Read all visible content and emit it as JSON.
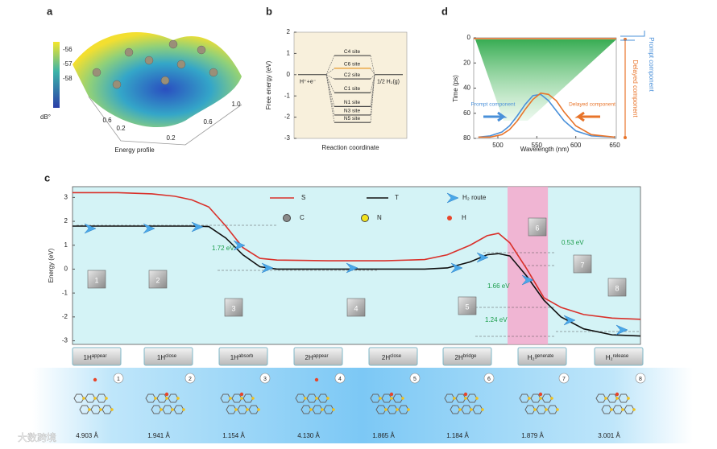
{
  "panel_a": {
    "label": "a",
    "colorbar_ticks": [
      -56,
      -57,
      -58
    ],
    "colorbar_unit": "dB°",
    "axis_ticks": [
      "0.6",
      "0.2",
      "0.2",
      "0.6",
      "1.0"
    ],
    "xlabel": "Energy profile"
  },
  "chart_data": [
    {
      "type": "level",
      "label": "b",
      "ylabel": "Free energy (eV)",
      "xlabel": "Reaction coordinate",
      "ylim": [
        -3,
        2
      ],
      "yticks": [
        2,
        1,
        0,
        -1,
        -2,
        -3
      ],
      "start_label": "H⁺+e⁻",
      "start_value": 0,
      "end_label": "1/2 H₂(g)",
      "end_value": 0,
      "categories": [
        "C4 site",
        "C6 site",
        "C2 site",
        "C1 site",
        "N1 site",
        "N3 site",
        "N5 site"
      ],
      "values": [
        0.9,
        0.3,
        -0.2,
        -0.85,
        -1.5,
        -1.9,
        -2.25
      ]
    },
    {
      "type": "emission",
      "label": "d",
      "ylabel": "Time (ps)",
      "xlabel": "Wavelength (nm)",
      "xlim": [
        469,
        652
      ],
      "xticks": [
        500,
        550,
        600,
        650
      ],
      "ylim": [
        80,
        0
      ],
      "yticks": [
        0,
        20,
        40,
        60,
        80
      ],
      "x": [
        475,
        490,
        505,
        515,
        525,
        535,
        545,
        555,
        565,
        575,
        585,
        600,
        620,
        650
      ],
      "series": [
        {
          "name": "Prompt component",
          "color": "#4a90d9",
          "values": [
            79,
            78,
            75,
            70,
            62,
            53,
            46,
            45,
            50,
            58,
            66,
            74,
            78,
            79
          ]
        },
        {
          "name": "Delayed component",
          "color": "#e8742a",
          "values": [
            79,
            79,
            77,
            73,
            66,
            57,
            49,
            44,
            45,
            50,
            59,
            70,
            77,
            79
          ]
        }
      ]
    },
    {
      "type": "line",
      "label": "c",
      "ylabel": "Energy (eV)",
      "xlim": [
        0,
        100
      ],
      "ylim": [
        -3.15,
        3.45
      ],
      "yticks": [
        3,
        2,
        1,
        0,
        -1,
        -2,
        -3
      ],
      "highlight_x": [
        76.6,
        83.7
      ],
      "x": [
        0,
        8,
        14,
        18,
        21,
        24,
        27,
        30,
        33,
        36,
        45,
        55,
        62,
        66,
        70,
        73,
        75,
        77,
        80,
        83,
        86,
        90,
        95,
        100
      ],
      "series": [
        {
          "name": "S",
          "color": "#d9302a",
          "values": [
            3.2,
            3.2,
            3.15,
            3.05,
            2.9,
            2.6,
            1.8,
            0.9,
            0.45,
            0.38,
            0.35,
            0.35,
            0.4,
            0.6,
            1.0,
            1.4,
            1.5,
            1.1,
            0.0,
            -1.2,
            -1.6,
            -1.9,
            -2.05,
            -2.1
          ]
        },
        {
          "name": "T",
          "color": "#111111",
          "values": [
            1.8,
            1.8,
            1.8,
            1.8,
            1.8,
            1.78,
            1.3,
            0.6,
            0.1,
            0.0,
            0.0,
            0.0,
            0.0,
            0.05,
            0.3,
            0.6,
            0.65,
            0.55,
            -0.3,
            -1.3,
            -2.0,
            -2.5,
            -2.75,
            -2.8
          ]
        }
      ],
      "route_label": "H₂ route",
      "atoms": [
        {
          "name": "C",
          "color": "#8a8a8a"
        },
        {
          "name": "N",
          "color": "#f2e21c"
        },
        {
          "name": "H",
          "color": "#e8452a"
        }
      ],
      "annotations": [
        "1.72 eV",
        "0.53 eV",
        "1.66 eV",
        "1.24 eV"
      ],
      "steps": [
        "1",
        "2",
        "3",
        "4",
        "5",
        "6",
        "7",
        "8"
      ],
      "states": [
        {
          "base": "1H",
          "sup": "appear"
        },
        {
          "base": "1H",
          "sup": "close"
        },
        {
          "base": "1H",
          "sup": "absorb"
        },
        {
          "base": "2H",
          "sup": "appear"
        },
        {
          "base": "2H",
          "sup": "close"
        },
        {
          "base": "2H",
          "sup": "bridge"
        },
        {
          "base": "H₂",
          "sup": "generate"
        },
        {
          "base": "H₂",
          "sup": "release"
        }
      ],
      "distances": [
        "4.903 Å",
        "1.941 Å",
        "1.154 Å",
        "4.130 Å",
        "1.865 Å",
        "1.184 Å",
        "1.879 Å",
        "3.001 Å"
      ]
    }
  ],
  "watermark": "大数跨境"
}
